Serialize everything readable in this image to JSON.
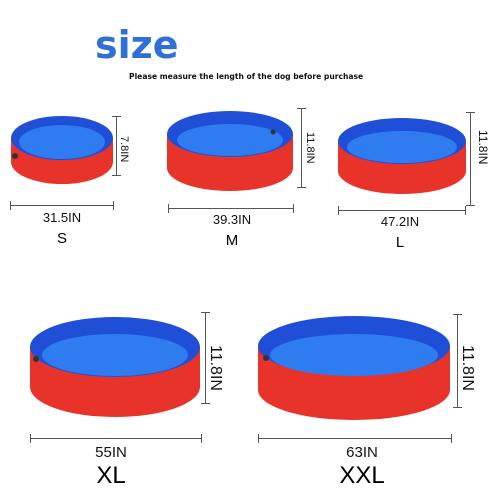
{
  "header": {
    "title": "size",
    "subtitle": "Please measure the length of the dog before purchase"
  },
  "colors": {
    "title_blue": "#2f6fd8",
    "pool_red": "#e8332b",
    "pool_rim_blue": "#1f4fd6",
    "pool_water_blue": "#2e7cf0"
  },
  "pools": [
    {
      "size": "S",
      "width": "31.5IN",
      "height": "7.8IN"
    },
    {
      "size": "M",
      "width": "39.3IN",
      "height": "11.8IN"
    },
    {
      "size": "L",
      "width": "47.2IN",
      "height": "11.8IN"
    },
    {
      "size": "XL",
      "width": "55IN",
      "height": "11.8IN"
    },
    {
      "size": "XXL",
      "width": "63IN",
      "height": "11.8IN"
    }
  ]
}
